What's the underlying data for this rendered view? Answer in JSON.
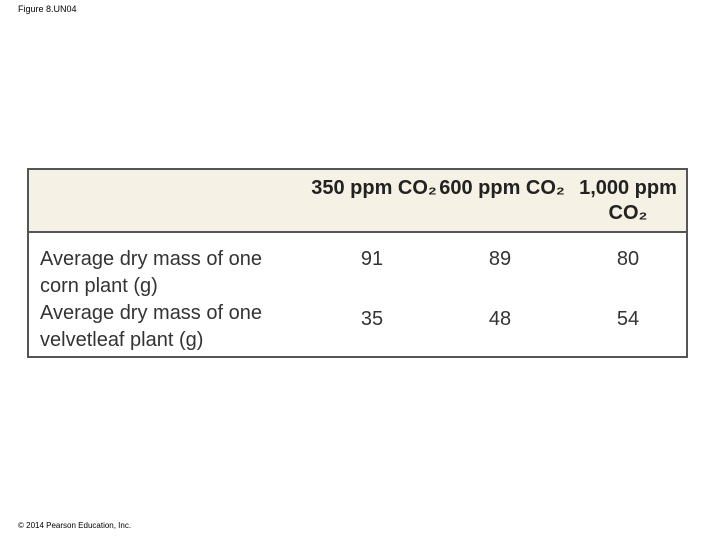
{
  "header": {
    "figure_label": "Figure 8.UN04"
  },
  "table": {
    "columns": [
      "350 ppm CO₂",
      "600 ppm CO₂",
      "1,000 ppm CO₂"
    ],
    "rows": [
      [
        "Average dry mass of one corn plant (g)",
        91,
        89,
        80
      ],
      [
        "Average dry mass of one velvetleaf plant (g)",
        35,
        48,
        54
      ]
    ]
  },
  "footer": {
    "copyright": "© 2014 Pearson Education, Inc."
  }
}
